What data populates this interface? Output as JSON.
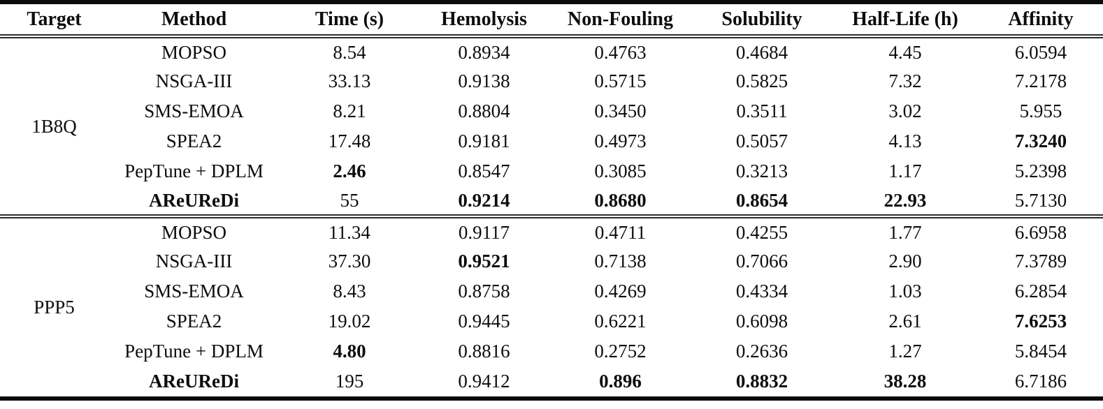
{
  "table": {
    "headers": [
      "Target",
      "Method",
      "Time (s)",
      "Hemolysis",
      "Non-Fouling",
      "Solubility",
      "Half-Life (h)",
      "Affinity"
    ],
    "colors": {
      "rule": "#0a0a0a",
      "text": "#0d0d0d",
      "background": "#ffffff"
    },
    "blocks": [
      {
        "target": "1B8Q",
        "rows": [
          {
            "method": {
              "v": "MOPSO",
              "b": false
            },
            "cells": [
              {
                "v": "8.54",
                "b": false
              },
              {
                "v": "0.8934",
                "b": false
              },
              {
                "v": "0.4763",
                "b": false
              },
              {
                "v": "0.4684",
                "b": false
              },
              {
                "v": "4.45",
                "b": false
              },
              {
                "v": "6.0594",
                "b": false
              }
            ]
          },
          {
            "method": {
              "v": "NSGA-III",
              "b": false
            },
            "cells": [
              {
                "v": "33.13",
                "b": false
              },
              {
                "v": "0.9138",
                "b": false
              },
              {
                "v": "0.5715",
                "b": false
              },
              {
                "v": "0.5825",
                "b": false
              },
              {
                "v": "7.32",
                "b": false
              },
              {
                "v": "7.2178",
                "b": false
              }
            ]
          },
          {
            "method": {
              "v": "SMS-EMOA",
              "b": false
            },
            "cells": [
              {
                "v": "8.21",
                "b": false
              },
              {
                "v": "0.8804",
                "b": false
              },
              {
                "v": "0.3450",
                "b": false
              },
              {
                "v": "0.3511",
                "b": false
              },
              {
                "v": "3.02",
                "b": false
              },
              {
                "v": "5.955",
                "b": false
              }
            ]
          },
          {
            "method": {
              "v": "SPEA2",
              "b": false
            },
            "cells": [
              {
                "v": "17.48",
                "b": false
              },
              {
                "v": "0.9181",
                "b": false
              },
              {
                "v": "0.4973",
                "b": false
              },
              {
                "v": "0.5057",
                "b": false
              },
              {
                "v": "4.13",
                "b": false
              },
              {
                "v": "7.3240",
                "b": true
              }
            ]
          },
          {
            "method": {
              "v": "PepTune + DPLM",
              "b": false
            },
            "cells": [
              {
                "v": "2.46",
                "b": true
              },
              {
                "v": "0.8547",
                "b": false
              },
              {
                "v": "0.3085",
                "b": false
              },
              {
                "v": "0.3213",
                "b": false
              },
              {
                "v": "1.17",
                "b": false
              },
              {
                "v": "5.2398",
                "b": false
              }
            ]
          },
          {
            "method": {
              "v": "AReUReDi",
              "b": true
            },
            "cells": [
              {
                "v": "55",
                "b": false
              },
              {
                "v": "0.9214",
                "b": true
              },
              {
                "v": "0.8680",
                "b": true
              },
              {
                "v": "0.8654",
                "b": true
              },
              {
                "v": "22.93",
                "b": true
              },
              {
                "v": "5.7130",
                "b": false
              }
            ]
          }
        ]
      },
      {
        "target": "PPP5",
        "rows": [
          {
            "method": {
              "v": "MOPSO",
              "b": false
            },
            "cells": [
              {
                "v": "11.34",
                "b": false
              },
              {
                "v": "0.9117",
                "b": false
              },
              {
                "v": "0.4711",
                "b": false
              },
              {
                "v": "0.4255",
                "b": false
              },
              {
                "v": "1.77",
                "b": false
              },
              {
                "v": "6.6958",
                "b": false
              }
            ]
          },
          {
            "method": {
              "v": "NSGA-III",
              "b": false
            },
            "cells": [
              {
                "v": "37.30",
                "b": false
              },
              {
                "v": "0.9521",
                "b": true
              },
              {
                "v": "0.7138",
                "b": false
              },
              {
                "v": "0.7066",
                "b": false
              },
              {
                "v": "2.90",
                "b": false
              },
              {
                "v": "7.3789",
                "b": false
              }
            ]
          },
          {
            "method": {
              "v": "SMS-EMOA",
              "b": false
            },
            "cells": [
              {
                "v": "8.43",
                "b": false
              },
              {
                "v": "0.8758",
                "b": false
              },
              {
                "v": "0.4269",
                "b": false
              },
              {
                "v": "0.4334",
                "b": false
              },
              {
                "v": "1.03",
                "b": false
              },
              {
                "v": "6.2854",
                "b": false
              }
            ]
          },
          {
            "method": {
              "v": "SPEA2",
              "b": false
            },
            "cells": [
              {
                "v": "19.02",
                "b": false
              },
              {
                "v": "0.9445",
                "b": false
              },
              {
                "v": "0.6221",
                "b": false
              },
              {
                "v": "0.6098",
                "b": false
              },
              {
                "v": "2.61",
                "b": false
              },
              {
                "v": "7.6253",
                "b": true
              }
            ]
          },
          {
            "method": {
              "v": "PepTune + DPLM",
              "b": false
            },
            "cells": [
              {
                "v": "4.80",
                "b": true
              },
              {
                "v": "0.8816",
                "b": false
              },
              {
                "v": "0.2752",
                "b": false
              },
              {
                "v": "0.2636",
                "b": false
              },
              {
                "v": "1.27",
                "b": false
              },
              {
                "v": "5.8454",
                "b": false
              }
            ]
          },
          {
            "method": {
              "v": "AReUReDi",
              "b": true
            },
            "cells": [
              {
                "v": "195",
                "b": false
              },
              {
                "v": "0.9412",
                "b": false
              },
              {
                "v": "0.896",
                "b": true
              },
              {
                "v": "0.8832",
                "b": true
              },
              {
                "v": "38.28",
                "b": true
              },
              {
                "v": "6.7186",
                "b": false
              }
            ]
          }
        ]
      }
    ]
  }
}
